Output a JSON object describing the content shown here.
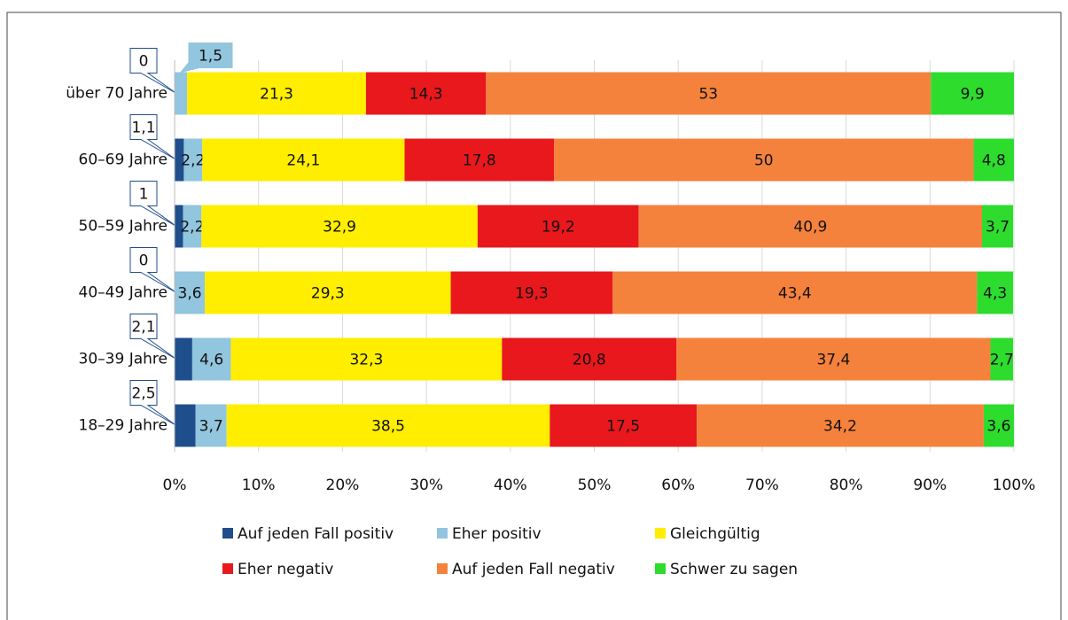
{
  "chart_data": {
    "type": "stacked-barh",
    "categories": [
      "über 70 Jahre",
      "60–69 Jahre",
      "50–59 Jahre",
      "40–49 Jahre",
      "30–39 Jahre",
      "18–29 Jahre"
    ],
    "series": [
      {
        "name": "Auf jeden Fall positiv",
        "color": "#1f4e8c",
        "values": [
          0,
          1.1,
          1,
          0,
          2.1,
          2.5
        ],
        "value_labels": [
          "0",
          "1,1",
          "1",
          "0",
          "2,1",
          "2,5"
        ]
      },
      {
        "name": "Eher positiv",
        "color": "#92c5de",
        "values": [
          1.5,
          2.2,
          2.2,
          3.6,
          4.6,
          3.7
        ],
        "value_labels": [
          "1,5",
          "2,2",
          "2,2",
          "3,6",
          "4,6",
          "3,7"
        ]
      },
      {
        "name": "Gleichgültig",
        "color": "#ffee00",
        "values": [
          21.3,
          24.1,
          32.9,
          29.3,
          32.3,
          38.5
        ],
        "value_labels": [
          "21,3",
          "24,1",
          "32,9",
          "29,3",
          "32,3",
          "38,5"
        ]
      },
      {
        "name": "Eher negativ",
        "color": "#e8181c",
        "values": [
          14.3,
          17.8,
          19.2,
          19.3,
          20.8,
          17.5
        ],
        "value_labels": [
          "14,3",
          "17,8",
          "19,2",
          "19,3",
          "20,8",
          "17,5"
        ]
      },
      {
        "name": "Auf jeden Fall negativ",
        "color": "#f5823c",
        "values": [
          53,
          50,
          40.9,
          43.4,
          37.4,
          34.2
        ],
        "value_labels": [
          "53",
          "50",
          "40,9",
          "43,4",
          "37,4",
          "34,2"
        ]
      },
      {
        "name": "Schwer zu sagen",
        "color": "#2ddc2d",
        "values": [
          9.9,
          4.8,
          3.7,
          4.3,
          2.7,
          3.6
        ],
        "value_labels": [
          "9,9",
          "4,8",
          "3,7",
          "4,3",
          "2,7",
          "3,6"
        ]
      }
    ],
    "xlim": [
      0,
      100
    ],
    "xticks": [
      {
        "value": 0,
        "label": "0%"
      },
      {
        "value": 10,
        "label": "10%"
      },
      {
        "value": 20,
        "label": "20%"
      },
      {
        "value": 30,
        "label": "30%"
      },
      {
        "value": 40,
        "label": "40%"
      },
      {
        "value": 50,
        "label": "50%"
      },
      {
        "value": 60,
        "label": "60%"
      },
      {
        "value": 70,
        "label": "70%"
      },
      {
        "value": 80,
        "label": "80%"
      },
      {
        "value": 90,
        "label": "90%"
      },
      {
        "value": 100,
        "label": "100%"
      }
    ],
    "grid": true,
    "legend": "bottom"
  }
}
